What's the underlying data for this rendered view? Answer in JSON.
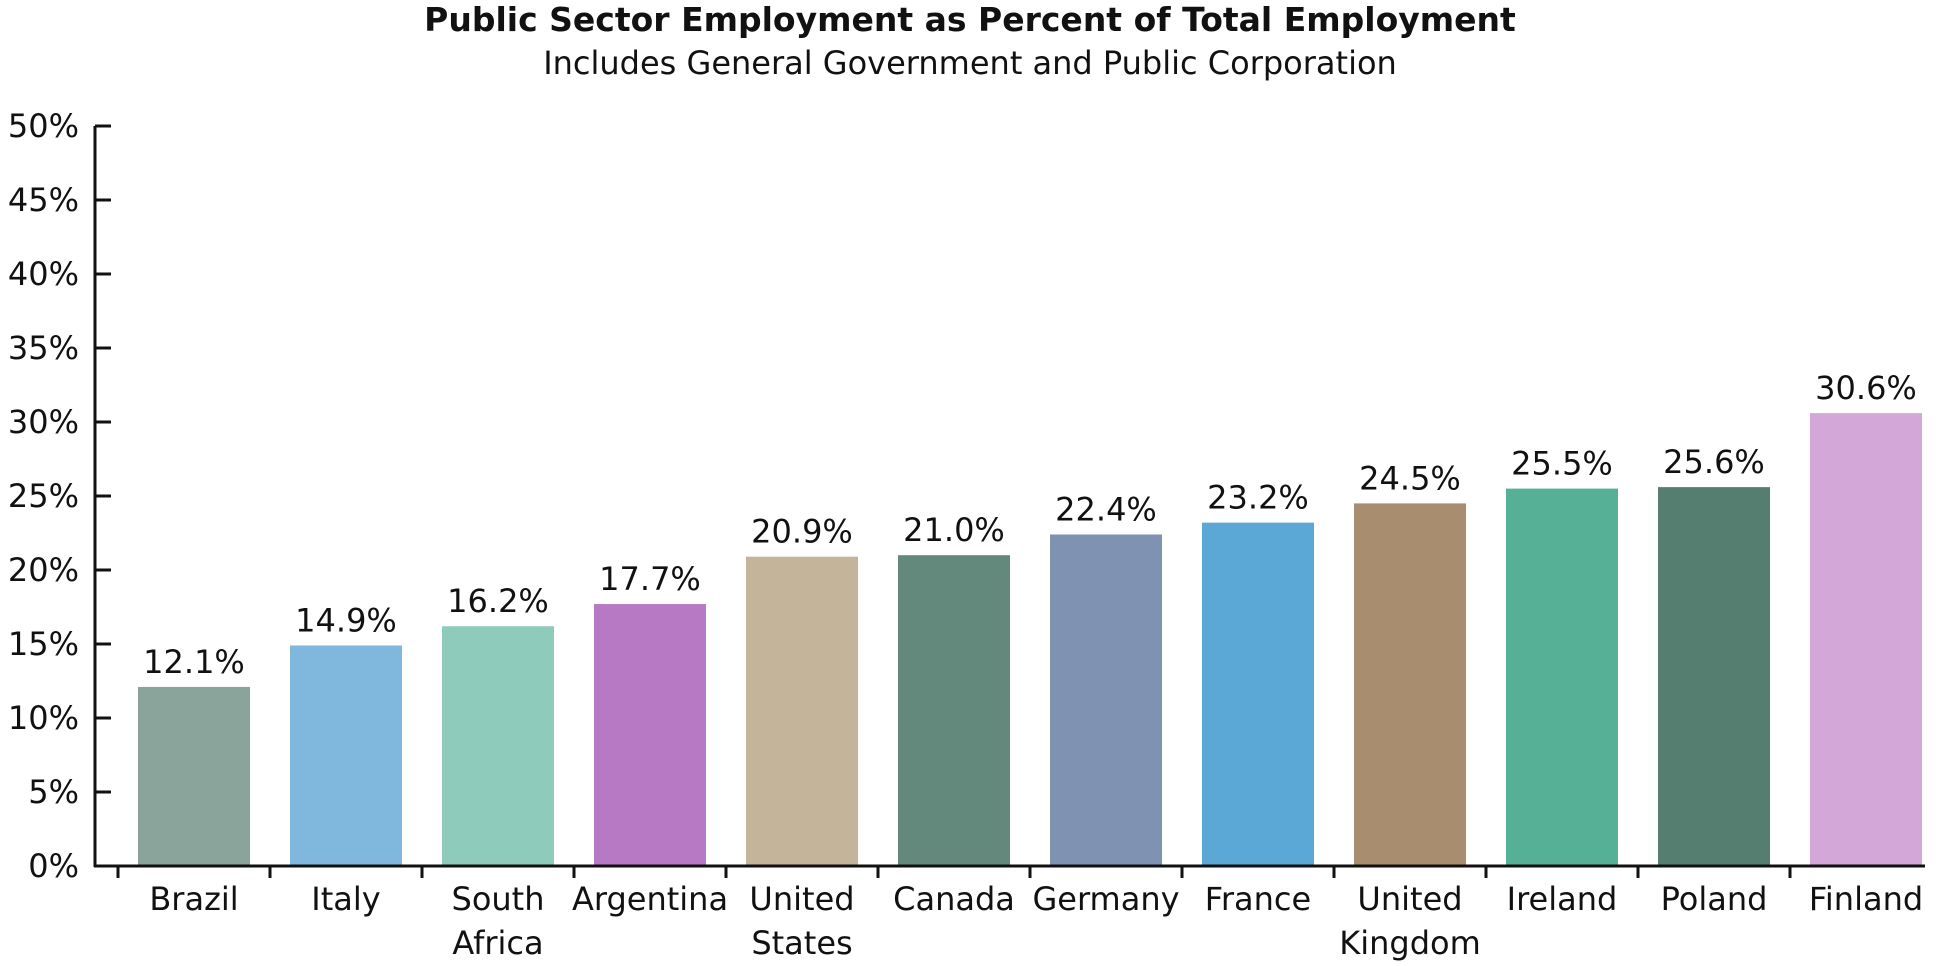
{
  "chart_data": {
    "type": "bar",
    "title": "Public Sector Employment as Percent of Total Employment",
    "subtitle": "Includes General Government and Public Corporation",
    "xlabel": "",
    "ylabel": "",
    "ylim": [
      0,
      50
    ],
    "yticks": [
      0,
      5,
      10,
      15,
      20,
      25,
      30,
      35,
      40,
      45,
      50
    ],
    "ytick_labels": [
      "0%",
      "5%",
      "10%",
      "15%",
      "20%",
      "25%",
      "30%",
      "35%",
      "40%",
      "45%",
      "50%"
    ],
    "grid": false,
    "legend": "none",
    "categories": [
      [
        "Brazil"
      ],
      [
        "Italy"
      ],
      [
        "South",
        "Africa"
      ],
      [
        "Argentina"
      ],
      [
        "United",
        "States"
      ],
      [
        "Canada"
      ],
      [
        "Germany"
      ],
      [
        "France"
      ],
      [
        "United",
        "Kingdom"
      ],
      [
        "Ireland"
      ],
      [
        "Poland"
      ],
      [
        "Finland"
      ]
    ],
    "values": [
      12.1,
      14.9,
      16.2,
      17.7,
      20.9,
      21.0,
      22.4,
      23.2,
      24.5,
      25.5,
      25.6,
      30.6
    ],
    "data_labels": [
      "12.1%",
      "14.9%",
      "16.2%",
      "17.7%",
      "20.9%",
      "21.0%",
      "22.4%",
      "23.2%",
      "24.5%",
      "25.5%",
      "25.6%",
      "30.6%"
    ],
    "colors": [
      "#8aa39b",
      "#80b7dc",
      "#8ecbba",
      "#b778c4",
      "#c4b49a",
      "#62897c",
      "#7f92b2",
      "#5ba7d5",
      "#a88e6e",
      "#56b095",
      "#557e71",
      "#d3a8d8"
    ]
  }
}
